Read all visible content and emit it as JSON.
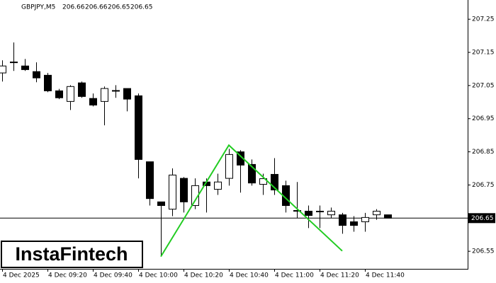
{
  "chart_data": {
    "type": "candlestick",
    "symbol": "GBPJPY,M5",
    "header_values": [
      206.66,
      206.66,
      206.65,
      206.65
    ],
    "watermark": "InstaFintech",
    "categories": [
      "4 Dec 2025",
      null,
      null,
      null,
      "4 Dec 09:20",
      null,
      null,
      null,
      "4 Dec 09:40",
      null,
      null,
      null,
      "4 Dec 10:00",
      null,
      null,
      null,
      "4 Dec 10:20",
      null,
      null,
      null,
      "4 Dec 10:40",
      null,
      null,
      null,
      "4 Dec 11:00",
      null,
      null,
      null,
      "4 Dec 11:20",
      null,
      null,
      null,
      "4 Dec 11:40",
      null,
      null
    ],
    "open": [
      207.088,
      207.12,
      207.109,
      207.092,
      207.081,
      207.034,
      207.002,
      207.058,
      207.011,
      207.002,
      207.035,
      207.041,
      207.019,
      206.82,
      206.699,
      206.677,
      206.77,
      206.688,
      206.759,
      206.737,
      206.77,
      206.85,
      206.812,
      206.752,
      206.782,
      206.748,
      206.673,
      206.671,
      206.671,
      206.66,
      206.66,
      206.639,
      206.639,
      206.66,
      206.66
    ],
    "high": [
      207.126,
      207.18,
      207.13,
      207.12,
      207.088,
      207.04,
      207.051,
      207.062,
      207.026,
      207.047,
      207.051,
      207.041,
      207.026,
      206.82,
      206.699,
      206.8,
      206.774,
      206.77,
      206.77,
      206.784,
      206.859,
      206.855,
      206.827,
      206.784,
      206.831,
      206.763,
      206.759,
      206.688,
      206.688,
      206.682,
      206.666,
      206.656,
      206.666,
      206.677,
      206.66
    ],
    "low": [
      207.062,
      207.094,
      207.094,
      207.06,
      207.03,
      207.009,
      206.976,
      207.013,
      206.987,
      206.93,
      207.013,
      206.972,
      206.77,
      206.688,
      206.534,
      206.656,
      206.667,
      206.677,
      206.667,
      206.72,
      206.748,
      206.727,
      206.748,
      206.72,
      206.72,
      206.667,
      206.65,
      206.62,
      206.62,
      206.65,
      206.603,
      206.609,
      206.609,
      206.645,
      206.65
    ],
    "close": [
      207.109,
      207.121,
      207.098,
      207.073,
      207.034,
      207.013,
      207.047,
      207.017,
      206.991,
      207.041,
      207.034,
      207.009,
      206.827,
      206.709,
      206.688,
      206.78,
      206.699,
      206.748,
      206.748,
      206.759,
      206.842,
      206.81,
      206.756,
      206.769,
      206.735,
      206.688,
      206.673,
      206.658,
      206.671,
      206.671,
      206.628,
      206.628,
      206.652,
      206.671,
      206.65
    ],
    "ylim": [
      206.497,
      207.308
    ],
    "yticks": [
      207.25,
      207.15,
      207.05,
      206.95,
      206.85,
      206.75,
      206.55
    ],
    "current_price": 206.65,
    "up_color": "#ffffff",
    "down_color": "#000000",
    "pattern_line": {
      "color": "#22cc22",
      "x_index": [
        14,
        20,
        30
      ],
      "values": [
        206.534,
        206.87,
        206.551
      ]
    }
  }
}
